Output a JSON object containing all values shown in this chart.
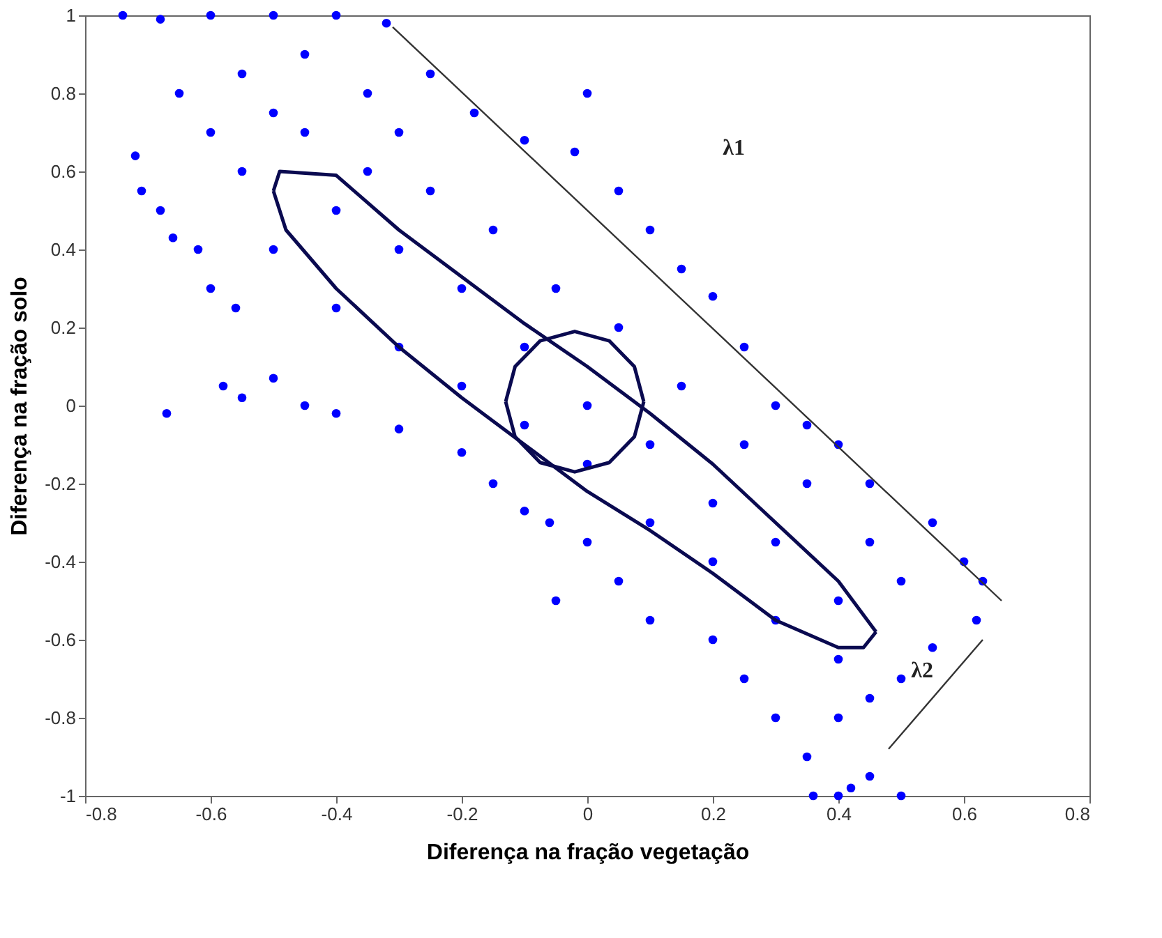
{
  "chart_data": {
    "type": "scatter",
    "xlabel": "Diferença na fração vegetação",
    "ylabel": "Diferença na fração solo",
    "xlim": [
      -0.8,
      0.8
    ],
    "ylim": [
      -1,
      1
    ],
    "xticks": [
      -0.8,
      -0.6,
      -0.4,
      -0.2,
      0,
      0.2,
      0.4,
      0.6,
      0.8
    ],
    "yticks": [
      -1,
      -0.8,
      -0.6,
      -0.4,
      -0.2,
      0,
      0.2,
      0.4,
      0.6,
      0.8,
      1
    ],
    "grid": false,
    "marker": "circle",
    "annotations": [
      "λ1",
      "λ2"
    ],
    "series": [
      {
        "color": "#0000ff",
        "x": [
          -0.74,
          -0.68,
          -0.6,
          -0.5,
          -0.4,
          -0.32,
          -0.45,
          -0.55,
          -0.65,
          -0.72,
          -0.71,
          -0.68,
          -0.66,
          -0.62,
          -0.6,
          -0.56,
          -0.58,
          -0.55,
          -0.5,
          -0.67,
          -0.45,
          -0.4,
          -0.3,
          -0.2,
          -0.15,
          -0.1,
          -0.06,
          -0.25,
          -0.18,
          -0.1,
          -0.02,
          0.0,
          0.05,
          0.1,
          0.15,
          0.2,
          0.25,
          0.3,
          0.35,
          0.4,
          0.45,
          0.55,
          0.6,
          0.63,
          0.62,
          0.55,
          0.5,
          0.45,
          0.4,
          0.35,
          0.3,
          0.25,
          0.2,
          0.1,
          0.05,
          0.0,
          -0.05,
          0.45,
          0.4,
          0.5,
          0.42,
          0.36,
          -0.4,
          -0.3,
          -0.2,
          -0.1,
          0.0,
          0.1,
          0.2,
          0.3,
          0.4,
          -0.45,
          -0.35,
          -0.25,
          -0.15,
          -0.05,
          0.05,
          0.15,
          0.25,
          0.35,
          0.45,
          0.5,
          -0.5,
          -0.4,
          -0.3,
          -0.2,
          -0.1,
          0.0,
          0.1,
          0.2,
          0.3,
          0.4,
          -0.55,
          -0.6,
          -0.5,
          -0.35,
          -0.3
        ],
        "values": [
          1.0,
          0.99,
          1.0,
          1.0,
          1.0,
          0.98,
          0.9,
          0.85,
          0.8,
          0.64,
          0.55,
          0.5,
          0.43,
          0.4,
          0.3,
          0.25,
          0.05,
          0.02,
          0.07,
          -0.02,
          0.0,
          -0.02,
          -0.06,
          -0.12,
          -0.2,
          -0.27,
          -0.3,
          0.85,
          0.75,
          0.68,
          0.65,
          0.8,
          0.55,
          0.45,
          0.35,
          0.28,
          0.15,
          0.0,
          -0.05,
          -0.1,
          -0.2,
          -0.3,
          -0.4,
          -0.45,
          -0.55,
          -0.62,
          -0.7,
          -0.75,
          -0.8,
          -0.9,
          -0.8,
          -0.7,
          -0.6,
          -0.55,
          -0.45,
          -0.35,
          -0.5,
          -0.95,
          -1.0,
          -1.0,
          -0.98,
          -1.0,
          0.5,
          0.4,
          0.3,
          0.15,
          0.0,
          -0.1,
          -0.25,
          -0.35,
          -0.5,
          0.7,
          0.6,
          0.55,
          0.45,
          0.3,
          0.2,
          0.05,
          -0.1,
          -0.2,
          -0.35,
          -0.45,
          0.4,
          0.25,
          0.15,
          0.05,
          -0.05,
          -0.15,
          -0.3,
          -0.4,
          -0.55,
          -0.65,
          0.6,
          0.7,
          0.75,
          0.8,
          0.7
        ]
      },
      {
        "type": "line",
        "marker": "none",
        "color": "#0a0a50",
        "x": [
          -0.5,
          -0.49,
          -0.4,
          -0.3,
          -0.2,
          -0.1,
          0,
          0.1,
          0.2,
          0.3,
          0.4,
          0.46
        ],
        "values": [
          0.55,
          0.6,
          0.59,
          0.45,
          0.33,
          0.21,
          0.1,
          -0.02,
          -0.15,
          -0.3,
          -0.45,
          -0.58
        ]
      },
      {
        "type": "line",
        "marker": "none",
        "color": "#0a0a50",
        "x": [
          -0.5,
          -0.48,
          -0.4,
          -0.3,
          -0.2,
          -0.1,
          0,
          0.1,
          0.2,
          0.3,
          0.4,
          0.44,
          0.46
        ],
        "values": [
          0.55,
          0.45,
          0.3,
          0.15,
          0.02,
          -0.1,
          -0.22,
          -0.32,
          -0.43,
          -0.55,
          -0.62,
          -0.62,
          -0.58
        ]
      },
      {
        "type": "line",
        "marker": "none",
        "color": "#0a0a50",
        "x": [
          -0.13,
          -0.115,
          -0.075,
          -0.02,
          0.035,
          0.075,
          0.09
        ],
        "values": [
          0.01,
          0.1,
          0.166,
          0.19,
          0.166,
          0.1,
          0.01
        ]
      },
      {
        "type": "line",
        "marker": "none",
        "color": "#0a0a50",
        "x": [
          -0.13,
          -0.115,
          -0.075,
          -0.02,
          0.035,
          0.075,
          0.09
        ],
        "values": [
          0.01,
          -0.08,
          -0.146,
          -0.17,
          -0.146,
          -0.08,
          0.01
        ]
      },
      {
        "type": "line",
        "marker": "none",
        "color": "#333333",
        "x": [
          -0.31,
          0.66
        ],
        "values": [
          0.97,
          -0.5
        ]
      },
      {
        "type": "line",
        "marker": "none",
        "color": "#333333",
        "x": [
          0.48,
          0.63
        ],
        "values": [
          -0.88,
          -0.6
        ]
      }
    ]
  }
}
